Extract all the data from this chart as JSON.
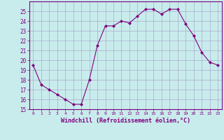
{
  "x": [
    0,
    1,
    2,
    3,
    4,
    5,
    6,
    7,
    8,
    9,
    10,
    11,
    12,
    13,
    14,
    15,
    16,
    17,
    18,
    19,
    20,
    21,
    22,
    23
  ],
  "y": [
    19.5,
    17.5,
    17.0,
    16.5,
    16.0,
    15.5,
    15.5,
    18.0,
    21.5,
    23.5,
    23.5,
    24.0,
    23.8,
    24.5,
    25.2,
    25.2,
    24.7,
    25.2,
    25.2,
    23.7,
    22.5,
    20.8,
    19.8,
    19.5
  ],
  "line_color": "#800080",
  "marker": "D",
  "marker_size": 2,
  "bg_color": "#c8ecec",
  "grid_color": "#aaaacc",
  "xlabel": "Windchill (Refroidissement éolien,°C)",
  "xlabel_color": "#800080",
  "tick_color": "#800080",
  "ylim": [
    15,
    26
  ],
  "xlim": [
    -0.5,
    23.5
  ],
  "yticks": [
    15,
    16,
    17,
    18,
    19,
    20,
    21,
    22,
    23,
    24,
    25
  ],
  "xticks": [
    0,
    1,
    2,
    3,
    4,
    5,
    6,
    7,
    8,
    9,
    10,
    11,
    12,
    13,
    14,
    15,
    16,
    17,
    18,
    19,
    20,
    21,
    22,
    23
  ]
}
